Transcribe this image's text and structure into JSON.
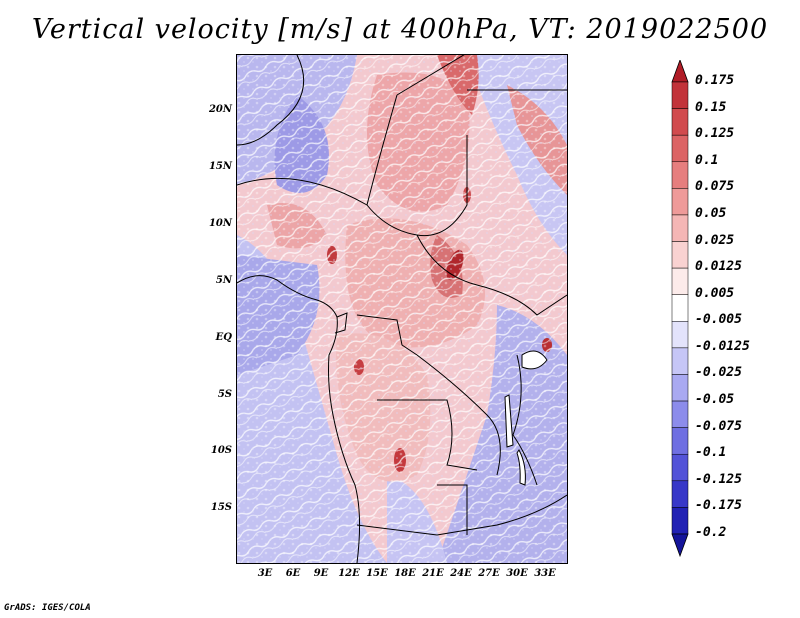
{
  "title": "Vertical velocity [m/s] at 400hPa, VT: 2019022500",
  "chart_data": {
    "type": "heatmap",
    "variable": "Vertical velocity",
    "units": "m/s",
    "level": "400hPa",
    "valid_time": "2019022500",
    "lat_ticks": [
      "20N",
      "15N",
      "10N",
      "5N",
      "EQ",
      "5S",
      "10S",
      "15S"
    ],
    "lon_ticks": [
      "3E",
      "6E",
      "9E",
      "12E",
      "15E",
      "18E",
      "21E",
      "24E",
      "27E",
      "30E",
      "33E"
    ],
    "colorbar": {
      "levels": [
        "0.175",
        "0.15",
        "0.125",
        "0.1",
        "0.075",
        "0.05",
        "0.025",
        "0.0125",
        "0.005",
        "-0.005",
        "-0.0125",
        "-0.025",
        "-0.05",
        "-0.075",
        "-0.1",
        "-0.125",
        "-0.175",
        "-0.2"
      ],
      "colors": [
        "#b01c26",
        "#c2333a",
        "#d14b4e",
        "#dc6465",
        "#e67e7e",
        "#ee9a99",
        "#f4b6b5",
        "#f9d2d1",
        "#fcebea",
        "#ffffff",
        "#e3e3fb",
        "#c6c6f6",
        "#a9a9f1",
        "#8c8ceb",
        "#6f6fe2",
        "#5353d8",
        "#3737c8",
        "#2121b4",
        "#14149a"
      ]
    }
  },
  "credit": "GrADS: IGES/COLA"
}
